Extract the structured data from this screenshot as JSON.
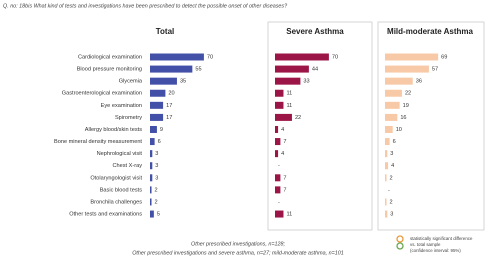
{
  "chart_data": {
    "type": "bar",
    "orientation": "horizontal",
    "title": "Q. no: 18bis What kind of tests and investigations have been prescribed to detect the possible onset of other diseases?",
    "categories": [
      "Cardiological examination",
      "Blood pressure monitoring",
      "Glycemia",
      "Gastroenterological examination",
      "Eye examination",
      "Spirometry",
      "Allergy blood/skin tests",
      "Bone mineral density measurement",
      "Nephrological visit",
      "Chest X-ray",
      "Otolaryngologist visit",
      "Basic blood tests",
      "Bronchila challenges",
      "Other tests and examinations"
    ],
    "series": [
      {
        "name": "Total",
        "color": "#4350a8",
        "values": [
          70,
          55,
          35,
          20,
          17,
          17,
          9,
          6,
          3,
          3,
          3,
          2,
          2,
          5
        ]
      },
      {
        "name": "Severe Asthma",
        "color": "#9c1547",
        "values": [
          70,
          44,
          33,
          11,
          11,
          22,
          4,
          7,
          4,
          null,
          7,
          7,
          null,
          11
        ],
        "value_labels": [
          null,
          null,
          null,
          null,
          null,
          null,
          null,
          null,
          null,
          "-",
          null,
          null,
          "-",
          null
        ]
      },
      {
        "name": "Mild-moderate Asthma",
        "color": "#f8c9a6",
        "values": [
          69,
          57,
          36,
          22,
          19,
          16,
          10,
          6,
          3,
          4,
          2,
          null,
          2,
          3
        ],
        "value_labels": [
          null,
          null,
          null,
          null,
          null,
          null,
          null,
          null,
          null,
          null,
          null,
          "-",
          null,
          null
        ]
      }
    ],
    "notes": [
      "Other prescribed investigations, n=128;",
      "Other prescribed investigations and severe asthma, n=27; mild-moderate asthma, n=101"
    ],
    "significance_note": [
      "statistically significant difference",
      "vs. total sample",
      "(confidence interval: 95%)"
    ]
  }
}
